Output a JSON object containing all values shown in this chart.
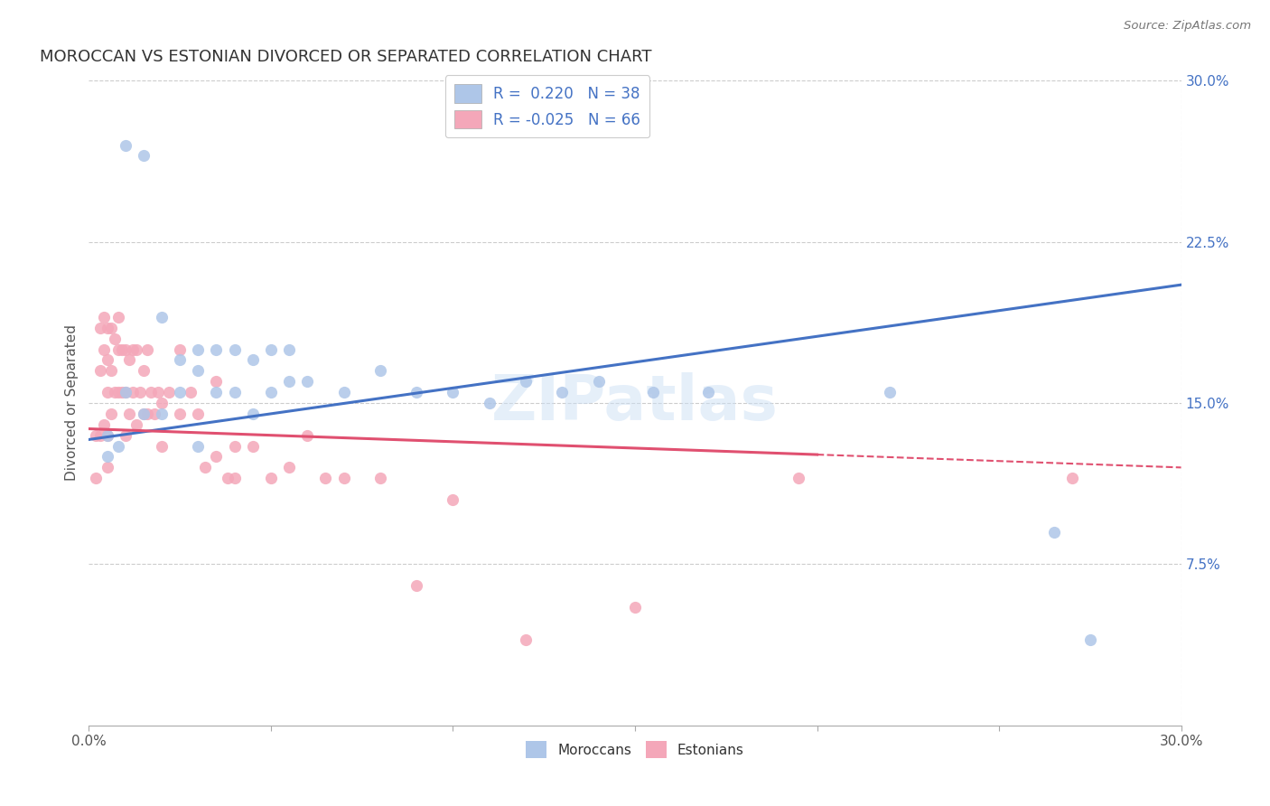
{
  "title": "MOROCCAN VS ESTONIAN DIVORCED OR SEPARATED CORRELATION CHART",
  "source": "Source: ZipAtlas.com",
  "ylabel": "Divorced or Separated",
  "right_yticks": [
    "30.0%",
    "22.5%",
    "15.0%",
    "7.5%"
  ],
  "right_ytick_vals": [
    0.3,
    0.225,
    0.15,
    0.075
  ],
  "xmin": 0.0,
  "xmax": 0.3,
  "ymin": 0.0,
  "ymax": 0.3,
  "moroccan_color": "#aec6e8",
  "estonian_color": "#f4a7b9",
  "moroccan_line_color": "#4472c4",
  "estonian_line_color": "#e05070",
  "moroccan_R": 0.22,
  "moroccan_N": 38,
  "estonian_R": -0.025,
  "estonian_N": 66,
  "watermark": "ZIPatlas",
  "moroccan_x": [
    0.005,
    0.005,
    0.008,
    0.01,
    0.01,
    0.015,
    0.015,
    0.02,
    0.02,
    0.025,
    0.025,
    0.03,
    0.03,
    0.03,
    0.035,
    0.035,
    0.04,
    0.04,
    0.045,
    0.045,
    0.05,
    0.05,
    0.055,
    0.055,
    0.06,
    0.07,
    0.08,
    0.09,
    0.1,
    0.11,
    0.12,
    0.13,
    0.14,
    0.155,
    0.17,
    0.22,
    0.265,
    0.275
  ],
  "moroccan_y": [
    0.125,
    0.135,
    0.13,
    0.27,
    0.155,
    0.265,
    0.145,
    0.19,
    0.145,
    0.17,
    0.155,
    0.175,
    0.165,
    0.13,
    0.175,
    0.155,
    0.175,
    0.155,
    0.17,
    0.145,
    0.175,
    0.155,
    0.175,
    0.16,
    0.16,
    0.155,
    0.165,
    0.155,
    0.155,
    0.15,
    0.16,
    0.155,
    0.16,
    0.155,
    0.155,
    0.155,
    0.09,
    0.04
  ],
  "estonian_x": [
    0.002,
    0.002,
    0.003,
    0.003,
    0.003,
    0.004,
    0.004,
    0.004,
    0.005,
    0.005,
    0.005,
    0.005,
    0.005,
    0.006,
    0.006,
    0.006,
    0.007,
    0.007,
    0.008,
    0.008,
    0.008,
    0.009,
    0.009,
    0.01,
    0.01,
    0.01,
    0.011,
    0.011,
    0.012,
    0.012,
    0.013,
    0.013,
    0.014,
    0.015,
    0.015,
    0.016,
    0.016,
    0.017,
    0.018,
    0.019,
    0.02,
    0.02,
    0.022,
    0.025,
    0.025,
    0.028,
    0.03,
    0.032,
    0.035,
    0.035,
    0.038,
    0.04,
    0.04,
    0.045,
    0.05,
    0.055,
    0.06,
    0.065,
    0.07,
    0.08,
    0.09,
    0.1,
    0.12,
    0.15,
    0.195,
    0.27
  ],
  "estonian_y": [
    0.135,
    0.115,
    0.185,
    0.165,
    0.135,
    0.19,
    0.175,
    0.14,
    0.185,
    0.17,
    0.155,
    0.135,
    0.12,
    0.185,
    0.165,
    0.145,
    0.18,
    0.155,
    0.19,
    0.175,
    0.155,
    0.175,
    0.155,
    0.175,
    0.155,
    0.135,
    0.17,
    0.145,
    0.175,
    0.155,
    0.175,
    0.14,
    0.155,
    0.165,
    0.145,
    0.175,
    0.145,
    0.155,
    0.145,
    0.155,
    0.15,
    0.13,
    0.155,
    0.175,
    0.145,
    0.155,
    0.145,
    0.12,
    0.16,
    0.125,
    0.115,
    0.13,
    0.115,
    0.13,
    0.115,
    0.12,
    0.135,
    0.115,
    0.115,
    0.115,
    0.065,
    0.105,
    0.04,
    0.055,
    0.115,
    0.115
  ]
}
